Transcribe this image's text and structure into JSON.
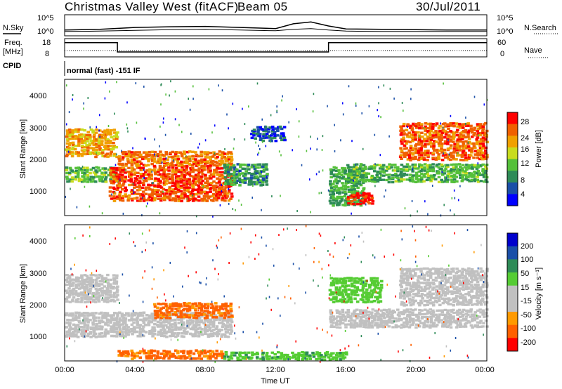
{
  "header": {
    "title": "Christmas Valley West (fitACF)",
    "beam": "Beam 05",
    "date": "30/Jul/2011"
  },
  "top_panels": {
    "nsky_label": "N.Sky",
    "nsky_ticks": [
      "10^5",
      "10^0"
    ],
    "nsearch_label": "N.Search",
    "nsearch_ticks": [
      "10^5",
      "10^0"
    ],
    "freq_label_1": "Freq.",
    "freq_label_2": "[MHz]",
    "freq_ticks": [
      "18",
      "8"
    ],
    "nave_label": "Nave",
    "nave_ticks": [
      "60",
      "0"
    ],
    "cpid_label": "CPID",
    "cpid_value": "normal (fast) -151 IF"
  },
  "power_panel": {
    "ylabel": "Slant Range [km]",
    "yticks": [
      "4000",
      "3000",
      "2000",
      "1000"
    ],
    "colorbar_label": "Power [dB]",
    "colorbar_ticks": [
      "28",
      "24",
      "20",
      "16",
      "12",
      "8",
      "4"
    ],
    "colorbar_colors": [
      "#0000ff",
      "#1a4fa8",
      "#2e8b57",
      "#55c03a",
      "#c8dc1e",
      "#f0a000",
      "#f06000",
      "#ff0000"
    ]
  },
  "velocity_panel": {
    "ylabel": "Slant Range [km]",
    "yticks": [
      "4000",
      "3000",
      "2000",
      "1000"
    ],
    "colorbar_label": "Velocity [m s⁻¹]",
    "colorbar_ticks": [
      "200",
      "100",
      "50",
      "15",
      "-15",
      "-50",
      "-100",
      "-200"
    ],
    "colorbar_colors": [
      "#ff0000",
      "#ff6000",
      "#ff9a00",
      "#c0c0c0",
      "#c0c0c0",
      "#55cc33",
      "#2e8b57",
      "#1a4fa8",
      "#0000cc"
    ]
  },
  "xaxis": {
    "label": "Time UT",
    "ticks": [
      "00:00",
      "04:00",
      "08:00",
      "12:00",
      "16:00",
      "20:00",
      "00:00"
    ]
  },
  "chart_data": [
    {
      "type": "line",
      "title": "N.Sky / N.Search",
      "x_hours": [
        0,
        2,
        4,
        6,
        8,
        10,
        12,
        13,
        14,
        15,
        16,
        18,
        20,
        22,
        24
      ],
      "series": [
        {
          "name": "N.Sky",
          "values_log10": [
            1.2,
            1.4,
            1.9,
            2.1,
            2.2,
            1.9,
            1.6,
            2.9,
            3.4,
            2.3,
            1.5,
            1.4,
            1.3,
            1.2,
            1.2
          ]
        },
        {
          "name": "N.Search",
          "values_log10": [
            0.8,
            0.9,
            1.1,
            1.3,
            1.4,
            1.2,
            1.0,
            1.4,
            1.6,
            1.2,
            0.9,
            0.8,
            0.8,
            0.8,
            0.8
          ]
        }
      ]
    },
    {
      "type": "line",
      "title": "Freq / Nave",
      "x_hours": [
        0,
        3.0,
        3.0,
        15.0,
        15.0,
        24
      ],
      "series": [
        {
          "name": "Freq",
          "unit": "MHz",
          "values": [
            16,
            16,
            10.5,
            10.5,
            16,
            16
          ]
        },
        {
          "name": "Nave",
          "values": [
            20,
            20,
            20,
            20,
            20,
            20
          ]
        }
      ],
      "ylim": [
        8,
        18
      ]
    },
    {
      "type": "heatmap",
      "title": "Power",
      "xlabel": "Time UT",
      "ylabel": "Slant Range [km]",
      "xlim_hours": [
        0,
        24
      ],
      "ylim_km": [
        180,
        4500
      ],
      "colorbar": {
        "label": "Power [dB]",
        "range": [
          0,
          32
        ]
      },
      "regions": [
        {
          "t": [
            0.0,
            3.0
          ],
          "r": [
            2000,
            2900
          ],
          "db": 22
        },
        {
          "t": [
            0.0,
            3.0
          ],
          "r": [
            1200,
            1700
          ],
          "db": 14
        },
        {
          "t": [
            2.5,
            9.5
          ],
          "r": [
            600,
            1700
          ],
          "db": 27
        },
        {
          "t": [
            3.0,
            9.5
          ],
          "r": [
            1700,
            2200
          ],
          "db": 25
        },
        {
          "t": [
            9.0,
            11.5
          ],
          "r": [
            1100,
            1800
          ],
          "db": 11
        },
        {
          "t": [
            10.5,
            12.5
          ],
          "r": [
            2500,
            3000
          ],
          "db": 6
        },
        {
          "t": [
            15.0,
            17.0
          ],
          "r": [
            450,
            1700
          ],
          "db": 12
        },
        {
          "t": [
            16.0,
            17.5
          ],
          "r": [
            500,
            900
          ],
          "db": 28
        },
        {
          "t": [
            16.0,
            24.0
          ],
          "r": [
            1200,
            1800
          ],
          "db": 13
        },
        {
          "t": [
            19.0,
            24.0
          ],
          "r": [
            1900,
            3100
          ],
          "db": 26
        }
      ]
    },
    {
      "type": "heatmap",
      "title": "Velocity",
      "xlabel": "Time UT",
      "ylabel": "Slant Range [km]",
      "xlim_hours": [
        0,
        24
      ],
      "ylim_km": [
        180,
        4500
      ],
      "colorbar": {
        "label": "Velocity [m s⁻¹]",
        "range": [
          -200,
          200
        ]
      },
      "regions": [
        {
          "t": [
            0.0,
            3.0
          ],
          "r": [
            2000,
            2900
          ],
          "v": 0
        },
        {
          "t": [
            0.0,
            9.5
          ],
          "r": [
            900,
            1700
          ],
          "v": 0
        },
        {
          "t": [
            5.0,
            9.5
          ],
          "r": [
            1500,
            2000
          ],
          "v": -60
        },
        {
          "t": [
            3.0,
            9.0
          ],
          "r": [
            200,
            500
          ],
          "v": -60
        },
        {
          "t": [
            9.0,
            16.0
          ],
          "r": [
            180,
            450
          ],
          "v": 40
        },
        {
          "t": [
            15.0,
            24.0
          ],
          "r": [
            1200,
            1800
          ],
          "v": 0
        },
        {
          "t": [
            19.0,
            24.0
          ],
          "r": [
            1900,
            3100
          ],
          "v": 0
        },
        {
          "t": [
            15.0,
            18.0
          ],
          "r": [
            2000,
            2800
          ],
          "v": 30
        }
      ]
    }
  ]
}
